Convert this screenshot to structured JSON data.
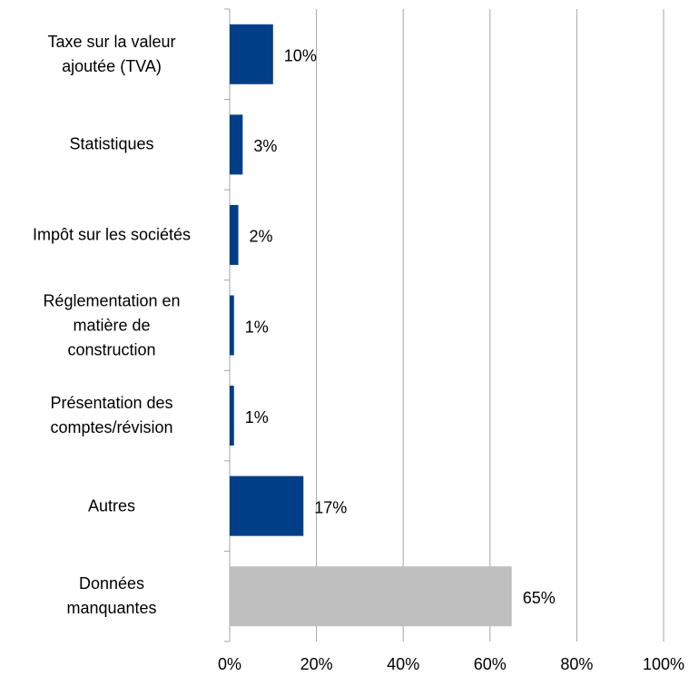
{
  "chart_data": {
    "type": "bar",
    "orientation": "horizontal",
    "categories": [
      "Taxe  sur la valeur\najoutée (TVA)",
      "Statistiques",
      "Impôt sur les sociétés",
      "Réglementation en\nmatière de\nconstruction",
      "Présentation des\ncomptes/révision",
      "Autres",
      "Données\nmanquantes"
    ],
    "values": [
      10,
      3,
      2,
      1,
      1,
      17,
      65
    ],
    "value_labels": [
      "10%",
      "3%",
      "2%",
      "1%",
      "1%",
      "17%",
      "65%"
    ],
    "colors": [
      "#003f87",
      "#003f87",
      "#003f87",
      "#003f87",
      "#003f87",
      "#003f87",
      "#bfbfbf"
    ],
    "xlim": [
      0,
      100
    ],
    "xticks": [
      {
        "value": 0,
        "label": "0%"
      },
      {
        "value": 20,
        "label": "20%"
      },
      {
        "value": 40,
        "label": "40%"
      },
      {
        "value": 60,
        "label": "60%"
      },
      {
        "value": 80,
        "label": "80%"
      },
      {
        "value": 100,
        "label": "100%"
      }
    ],
    "grid": true
  }
}
